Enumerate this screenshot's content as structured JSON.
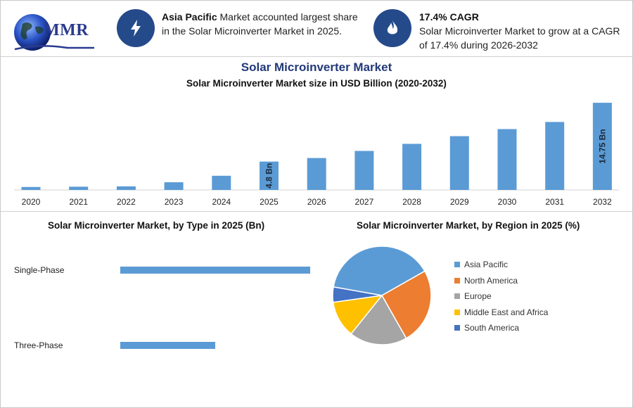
{
  "logo": {
    "text": "MMR"
  },
  "info_left": {
    "bold": "Asia Pacific",
    "text": " Market accounted largest share in the Solar Microinverter Market in 2025.",
    "icon": "lightning-bolt-icon"
  },
  "info_right": {
    "bold": "17.4% CAGR",
    "text": "Solar Microinverter Market to grow at a CAGR of 17.4% during 2026-2032",
    "icon": "flame-icon"
  },
  "main_title": "Solar Microinverter Market",
  "colors": {
    "bar": "#5b9bd5",
    "icon_bg": "#244a8a",
    "title": "#223a78"
  },
  "chart_data": [
    {
      "type": "bar",
      "title": "Solar Microinverter Market size in USD Billion (2020-2032)",
      "categories": [
        "2020",
        "2021",
        "2022",
        "2023",
        "2024",
        "2025",
        "2026",
        "2027",
        "2028",
        "2029",
        "2030",
        "2031",
        "2032"
      ],
      "values": [
        0.5,
        0.55,
        0.6,
        1.3,
        2.4,
        4.8,
        5.4,
        6.6,
        7.8,
        9.1,
        10.3,
        11.5,
        14.75
      ],
      "data_labels": {
        "5": "4.8 Bn",
        "12": "14.75 Bn"
      },
      "ylim": [
        0,
        15
      ]
    },
    {
      "type": "bar",
      "orientation": "horizontal",
      "title": "Solar Microinverter Market, by Type in 2025 (Bn)",
      "categories": [
        "Single-Phase",
        "Three-Phase"
      ],
      "values": [
        3.2,
        1.6
      ],
      "xlim": [
        0,
        3.2
      ]
    },
    {
      "type": "pie",
      "title": "Solar Microinverter Market, by Region in 2025 (%)",
      "categories": [
        "Asia Pacific",
        "North America",
        "Europe",
        "Middle East and Africa",
        "South America"
      ],
      "values": [
        39,
        25,
        19,
        12,
        5
      ],
      "colors": [
        "#5b9bd5",
        "#ed7d31",
        "#a5a5a5",
        "#ffc000",
        "#4472c4"
      ],
      "legend": "right"
    }
  ]
}
